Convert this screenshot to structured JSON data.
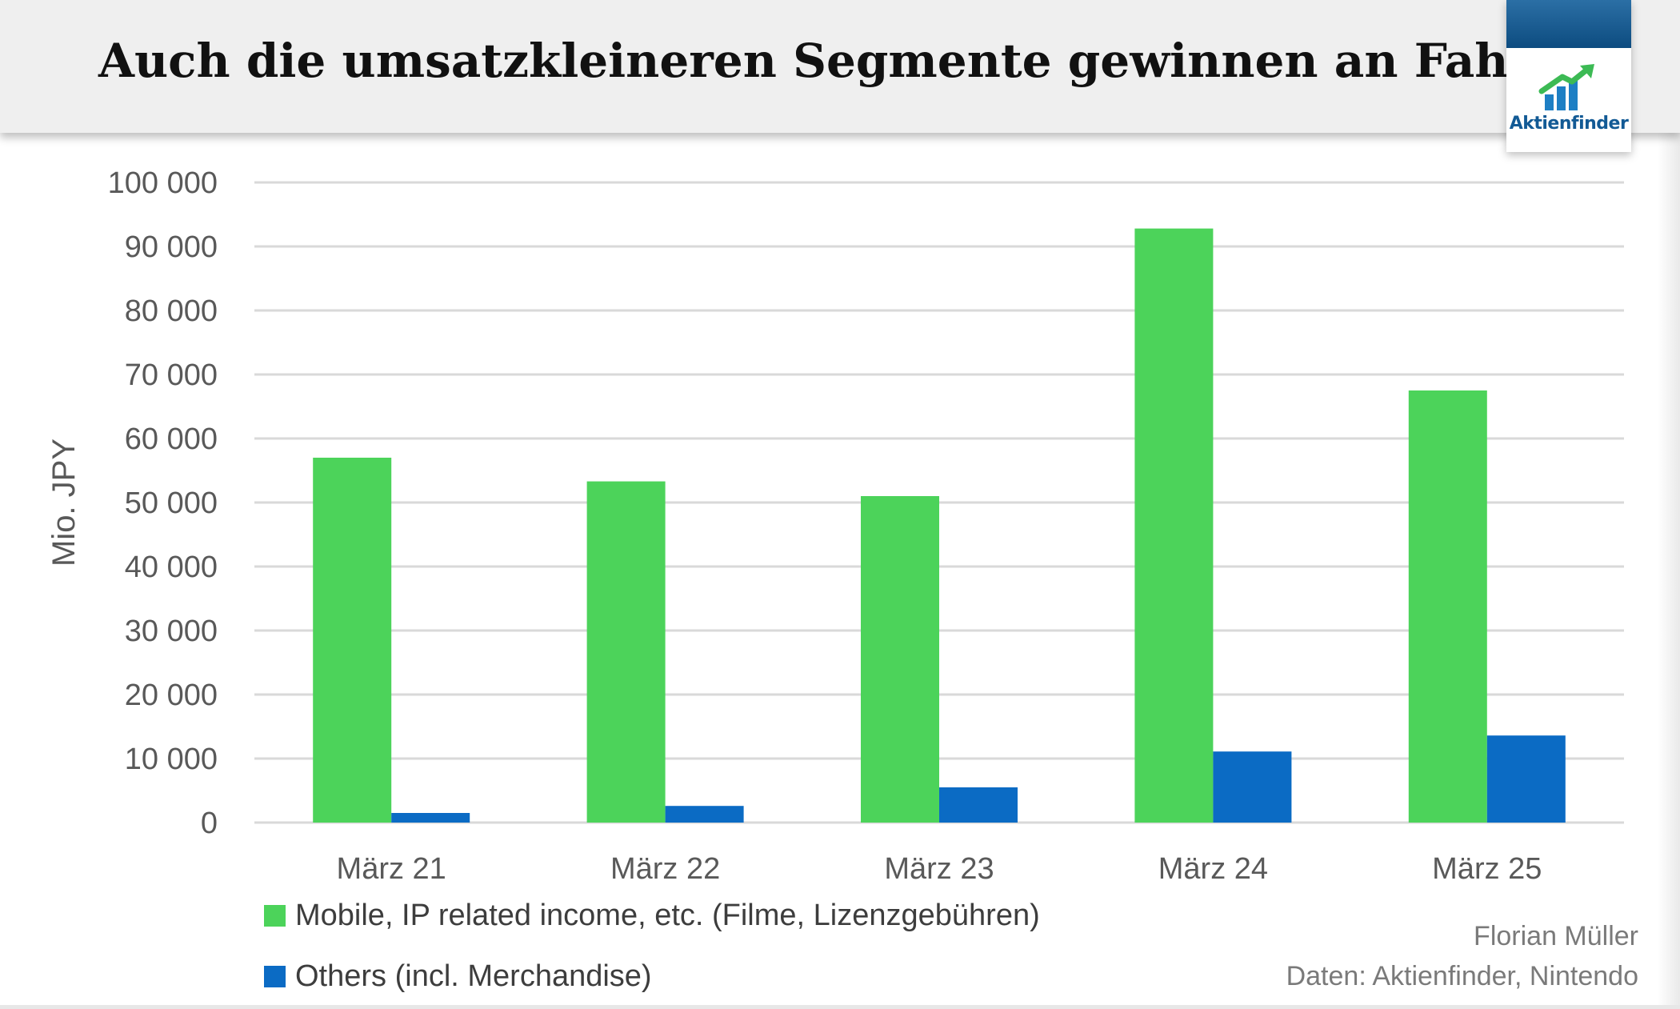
{
  "header": {
    "title": "Auch die umsatzkleineren Segmente gewinnen an Fahrt",
    "logo_text": "Aktienfinder"
  },
  "chart_data": {
    "type": "bar",
    "title": "Auch die umsatzkleineren Segmente gewinnen an Fahrt",
    "ylabel": "Mio. JPY",
    "xlabel": "",
    "ylim": [
      0,
      100000
    ],
    "yticks": [
      0,
      10000,
      20000,
      30000,
      40000,
      50000,
      60000,
      70000,
      80000,
      90000,
      100000
    ],
    "ytick_labels": [
      "0",
      "10 000",
      "20 000",
      "30 000",
      "40 000",
      "50 000",
      "60 000",
      "70 000",
      "80 000",
      "90 000",
      "100 000"
    ],
    "grid": true,
    "legend_position": "bottom-left",
    "categories": [
      "März 21",
      "März 22",
      "März 23",
      "März 24",
      "März 25"
    ],
    "series": [
      {
        "name": "Mobile, IP related income, etc. (Filme, Lizenzgebühren)",
        "color": "#4cd35a",
        "values": [
          57000,
          53300,
          51000,
          92800,
          67500
        ]
      },
      {
        "name": "Others (incl. Merchandise)",
        "color": "#0b6bc4",
        "values": [
          1500,
          2600,
          5500,
          11100,
          13600
        ]
      }
    ]
  },
  "credits": {
    "author": "Florian Müller",
    "source": "Daten: Aktienfinder, Nintendo"
  }
}
